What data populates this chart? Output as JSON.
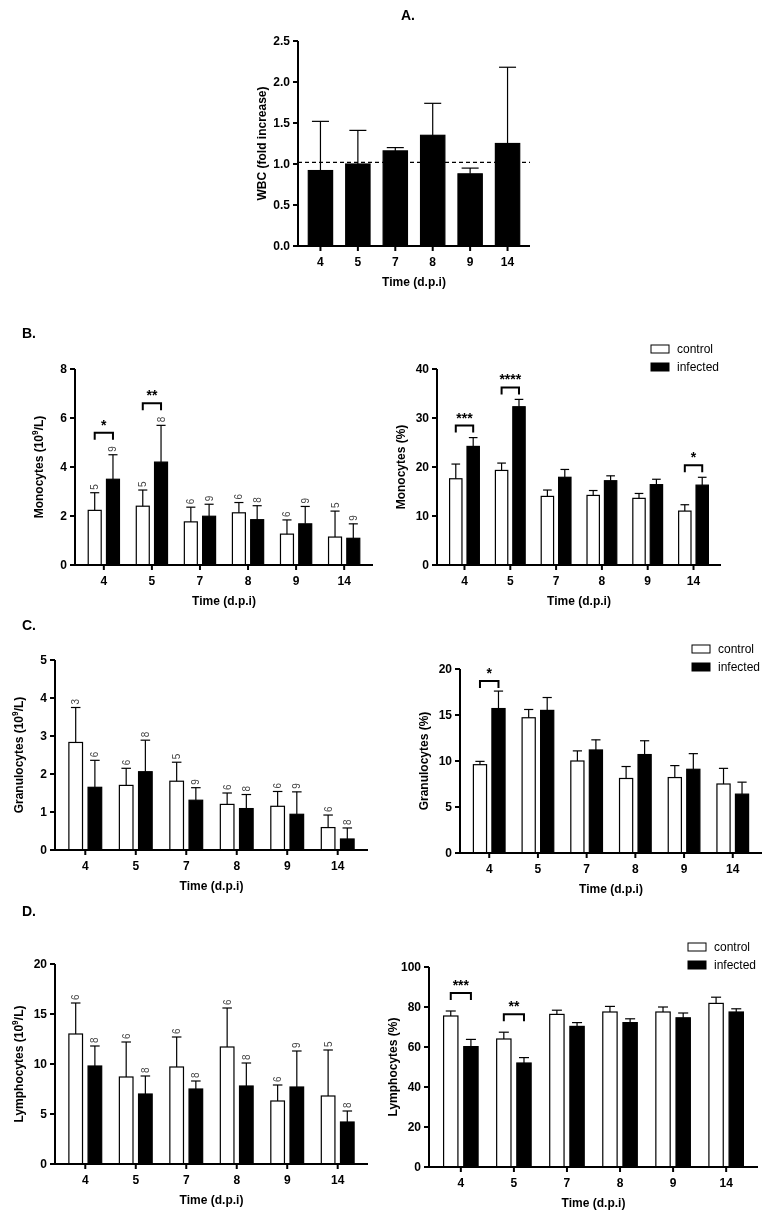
{
  "chart_data": [
    {
      "type": "bar",
      "title": "A.",
      "xlabel": "Time (d.p.i)",
      "ylabel": "WBC (fold increase)",
      "categories": [
        "4",
        "5",
        "7",
        "8",
        "9",
        "14"
      ],
      "values": [
        0.92,
        1.0,
        1.16,
        1.35,
        0.88,
        1.25
      ],
      "errors": [
        [
          0.92,
          1.52
        ],
        [
          1.0,
          1.41
        ],
        [
          1.16,
          1.2
        ],
        [
          1.35,
          1.74
        ],
        [
          0.88,
          0.95
        ],
        [
          1.25,
          2.18
        ]
      ],
      "color": "#000000",
      "ylim": [
        0,
        2.5
      ],
      "yticks": [
        {
          "value": 0,
          "label": "0.0"
        },
        {
          "value": 0.5,
          "label": "0.5"
        },
        {
          "value": 1,
          "label": "1.0"
        },
        {
          "value": 1.5,
          "label": "1.5"
        },
        {
          "value": 2,
          "label": "2.0"
        },
        {
          "value": 2.5,
          "label": "2.5"
        }
      ],
      "ref_lines": [
        {
          "axis": "y",
          "value": 1.02,
          "line_style": "dashed"
        }
      ]
    },
    {
      "type": "bar",
      "title": "B.",
      "xlabel": "Time (d.p.i)",
      "ylabel": "Monocytes (10$^{9}$/L)",
      "categories": [
        "4",
        "5",
        "7",
        "8",
        "9",
        "14"
      ],
      "series": [
        {
          "color": "#ffffff",
          "values": [
            2.23,
            2.4,
            1.76,
            2.13,
            1.26,
            1.14
          ],
          "errors": [
            [
              2.23,
              2.95
            ],
            [
              2.4,
              3.06
            ],
            [
              1.76,
              2.36
            ],
            [
              2.13,
              2.55
            ],
            [
              1.26,
              1.84
            ],
            [
              1.14,
              2.2
            ]
          ]
        },
        {
          "color": "#000000",
          "values": [
            3.5,
            4.2,
            1.99,
            1.85,
            1.68,
            1.09
          ],
          "errors": [
            [
              3.5,
              4.5
            ],
            [
              4.2,
              5.7
            ],
            [
              1.99,
              2.48
            ],
            [
              1.85,
              2.42
            ],
            [
              1.68,
              2.39
            ],
            [
              1.09,
              1.68
            ]
          ]
        }
      ],
      "ylim": [
        0,
        8
      ],
      "yticks": [
        0,
        2,
        4,
        6,
        8
      ],
      "legend": false,
      "annotations": [
        "5",
        "5",
        "6",
        "6",
        "6",
        "5",
        "9",
        "8",
        "9",
        "8",
        "9",
        "9",
        "*",
        "**"
      ]
    },
    {
      "type": "bar",
      "xlabel": "Time (d.p.i)",
      "ylabel": "Monocytes (%)",
      "categories": [
        "4",
        "5",
        "7",
        "8",
        "9",
        "14"
      ],
      "series": [
        {
          "name": "control",
          "color": "#ffffff",
          "values": [
            17.6,
            19.3,
            14.0,
            14.2,
            13.6,
            11.0
          ],
          "errors": [
            [
              17.6,
              20.6
            ],
            [
              19.3,
              20.8
            ],
            [
              14.0,
              15.3
            ],
            [
              14.2,
              15.2
            ],
            [
              13.6,
              14.6
            ],
            [
              11.0,
              12.3
            ]
          ]
        },
        {
          "name": "infected",
          "color": "#000000",
          "values": [
            24.2,
            32.3,
            17.9,
            17.2,
            16.4,
            16.3
          ],
          "errors": [
            [
              24.2,
              26.0
            ],
            [
              32.3,
              33.8
            ],
            [
              17.9,
              19.5
            ],
            [
              17.2,
              18.2
            ],
            [
              16.4,
              17.5
            ],
            [
              16.3,
              17.9
            ]
          ]
        }
      ],
      "ylim": [
        0,
        40
      ],
      "yticks": [
        0,
        10,
        20,
        30,
        40
      ],
      "legend": "top right",
      "annotations": [
        "***",
        "****",
        "*"
      ]
    },
    {
      "type": "bar",
      "title": "C.",
      "xlabel": "Time (d.p.i)",
      "ylabel": "Granulocytes (10$^{9}$/L)",
      "categories": [
        "4",
        "5",
        "7",
        "8",
        "9",
        "14"
      ],
      "series": [
        {
          "color": "#ffffff",
          "values": [
            2.83,
            1.7,
            1.81,
            1.2,
            1.15,
            0.59
          ],
          "errors": [
            [
              2.83,
              3.75
            ],
            [
              1.7,
              2.15
            ],
            [
              1.81,
              2.31
            ],
            [
              1.2,
              1.5
            ],
            [
              1.15,
              1.54
            ],
            [
              0.59,
              0.92
            ]
          ]
        },
        {
          "color": "#000000",
          "values": [
            1.65,
            2.06,
            1.31,
            1.09,
            0.94,
            0.29
          ],
          "errors": [
            [
              1.65,
              2.36
            ],
            [
              2.06,
              2.89
            ],
            [
              1.31,
              1.64
            ],
            [
              1.09,
              1.46
            ],
            [
              0.94,
              1.53
            ],
            [
              0.29,
              0.58
            ]
          ]
        }
      ],
      "ylim": [
        0,
        5
      ],
      "yticks": [
        0,
        1,
        2,
        3,
        4,
        5
      ],
      "legend": false,
      "annotations": [
        "3",
        "6",
        "5",
        "6",
        "6",
        "6",
        "6",
        "8",
        "9",
        "8",
        "9",
        "8"
      ]
    },
    {
      "type": "bar",
      "xlabel": "Time (d.p.i)",
      "ylabel": "Granulocytes (%)",
      "categories": [
        "4",
        "5",
        "7",
        "8",
        "9",
        "14"
      ],
      "series": [
        {
          "name": "control",
          "color": "#ffffff",
          "values": [
            9.6,
            14.7,
            10.0,
            8.1,
            8.2,
            7.5
          ],
          "errors": [
            [
              9.6,
              9.96
            ],
            [
              14.7,
              15.6
            ],
            [
              10.0,
              11.1
            ],
            [
              8.1,
              9.4
            ],
            [
              8.2,
              9.5
            ],
            [
              7.5,
              9.2
            ]
          ]
        },
        {
          "name": "infected",
          "color": "#000000",
          "values": [
            15.7,
            15.5,
            11.2,
            10.7,
            9.1,
            6.4
          ],
          "errors": [
            [
              15.7,
              17.6
            ],
            [
              15.5,
              16.9
            ],
            [
              11.2,
              12.3
            ],
            [
              10.7,
              12.2
            ],
            [
              9.1,
              10.8
            ],
            [
              6.4,
              7.7
            ]
          ]
        }
      ],
      "ylim": [
        0,
        20
      ],
      "yticks": [
        0,
        5,
        10,
        15,
        20
      ],
      "legend": "top right",
      "annotations": [
        "*"
      ]
    },
    {
      "type": "bar",
      "title": "D.",
      "xlabel": "Time (d.p.i)",
      "ylabel": "Lymphocytes (10$^{9}$/L)",
      "categories": [
        "4",
        "5",
        "7",
        "8",
        "9",
        "14"
      ],
      "series": [
        {
          "color": "#ffffff",
          "values": [
            13.0,
            8.7,
            9.7,
            11.7,
            6.3,
            6.8
          ],
          "errors": [
            [
              13.0,
              16.1
            ],
            [
              8.7,
              12.2
            ],
            [
              9.7,
              12.7
            ],
            [
              11.7,
              15.6
            ],
            [
              6.3,
              7.9
            ],
            [
              6.8,
              11.4
            ]
          ]
        },
        {
          "color": "#000000",
          "values": [
            9.8,
            7.0,
            7.5,
            7.8,
            7.7,
            4.2
          ],
          "errors": [
            [
              9.8,
              11.8
            ],
            [
              7.0,
              8.8
            ],
            [
              7.5,
              8.3
            ],
            [
              7.8,
              10.1
            ],
            [
              7.7,
              11.3
            ],
            [
              4.2,
              5.3
            ]
          ]
        }
      ],
      "ylim": [
        0,
        20
      ],
      "yticks": [
        0,
        5,
        10,
        15,
        20
      ],
      "legend": false,
      "annotations": [
        "6",
        "6",
        "6",
        "6",
        "6",
        "5",
        "8",
        "8",
        "8",
        "8",
        "9",
        "8"
      ]
    },
    {
      "type": "bar",
      "xlabel": "Time (d.p.i)",
      "ylabel": "Lymphocytes (%)",
      "categories": [
        "4",
        "5",
        "7",
        "8",
        "9",
        "14"
      ],
      "series": [
        {
          "name": "control",
          "color": "#ffffff",
          "values": [
            75.5,
            64,
            76.3,
            77.5,
            77.5,
            81.8
          ],
          "errors": [
            [
              75.5,
              78
            ],
            [
              64,
              67.4
            ],
            [
              76.3,
              78.4
            ],
            [
              77.5,
              80.3
            ],
            [
              77.5,
              80
            ],
            [
              81.8,
              84.9
            ]
          ]
        },
        {
          "name": "infected",
          "color": "#000000",
          "values": [
            60.2,
            52,
            70.3,
            72.2,
            74.6,
            77.5
          ],
          "errors": [
            [
              60.2,
              63.8
            ],
            [
              52,
              54.7
            ],
            [
              70.3,
              72.2
            ],
            [
              72.2,
              74.1
            ],
            [
              74.6,
              77
            ],
            [
              77.5,
              79.1
            ]
          ]
        }
      ],
      "ylim": [
        0,
        100
      ],
      "yticks": [
        0,
        20,
        40,
        60,
        80,
        100
      ],
      "legend": "top right",
      "annotations": [
        "***",
        "**"
      ]
    }
  ]
}
